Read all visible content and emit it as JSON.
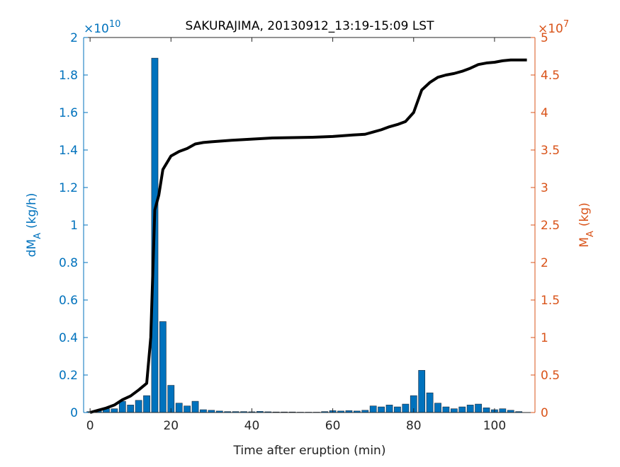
{
  "chart_data": {
    "type": "bar-line",
    "title": "SAKURAJIMA, 20130912_13:19-15:09 LST",
    "xlabel": "Time after eruption (min)",
    "ylabel": {
      "main": "dM",
      "sub": "A",
      "unit": "(kg/h)"
    },
    "y2label": {
      "main": "M",
      "sub": "A",
      "unit": "(kg)"
    },
    "y_exponent": {
      "base": "×10",
      "power": "10"
    },
    "y2_exponent": {
      "base": "×10",
      "power": "7"
    },
    "xlim": [
      -1.6,
      110
    ],
    "xticks": [
      0,
      20,
      40,
      60,
      80,
      100
    ],
    "ylim": [
      0,
      2
    ],
    "yticks": [
      0,
      0.2,
      0.4,
      0.6,
      0.8,
      1,
      1.2,
      1.4,
      1.6,
      1.8,
      2
    ],
    "y2lim": [
      0,
      5
    ],
    "y2ticks": [
      0,
      0.5,
      1,
      1.5,
      2,
      2.5,
      3,
      3.5,
      4,
      4.5,
      5
    ],
    "y_color": "#0072bd",
    "y2_color": "#d95319",
    "series": [
      {
        "type": "bar",
        "color": "#0072bd",
        "axis": "y",
        "x": [
          0,
          2,
          4,
          6,
          8,
          10,
          12,
          14,
          16,
          18,
          20,
          22,
          24,
          26,
          28,
          30,
          32,
          34,
          36,
          38,
          40,
          42,
          44,
          46,
          48,
          50,
          52,
          54,
          56,
          58,
          60,
          62,
          64,
          66,
          68,
          70,
          72,
          74,
          76,
          78,
          80,
          82,
          84,
          86,
          88,
          90,
          92,
          94,
          96,
          98,
          100,
          102,
          104,
          106
        ],
        "values": [
          0.005,
          0.01,
          0.02,
          0.02,
          0.06,
          0.04,
          0.065,
          0.09,
          1.89,
          0.485,
          0.145,
          0.05,
          0.035,
          0.06,
          0.015,
          0.012,
          0.008,
          0.005,
          0.005,
          0.005,
          0.004,
          0.006,
          0.004,
          0.003,
          0.003,
          0.003,
          0.002,
          0.002,
          0.002,
          0.005,
          0.01,
          0.008,
          0.01,
          0.008,
          0.012,
          0.035,
          0.03,
          0.04,
          0.03,
          0.045,
          0.09,
          0.225,
          0.105,
          0.05,
          0.03,
          0.02,
          0.03,
          0.04,
          0.045,
          0.025,
          0.015,
          0.02,
          0.012,
          0.005
        ]
      },
      {
        "type": "line",
        "color": "#000000",
        "axis": "y2",
        "x": [
          0,
          2,
          4,
          6,
          8,
          10,
          12,
          14,
          15,
          16,
          17,
          18,
          20,
          22,
          24,
          26,
          28,
          30,
          35,
          40,
          45,
          50,
          55,
          60,
          65,
          68,
          70,
          72,
          74,
          76,
          78,
          80,
          82,
          84,
          86,
          88,
          90,
          92,
          94,
          96,
          98,
          100,
          102,
          104,
          106,
          108
        ],
        "values": [
          0,
          0.03,
          0.06,
          0.1,
          0.17,
          0.22,
          0.3,
          0.39,
          1.0,
          2.7,
          2.9,
          3.24,
          3.42,
          3.48,
          3.52,
          3.58,
          3.6,
          3.61,
          3.63,
          3.645,
          3.66,
          3.665,
          3.67,
          3.68,
          3.7,
          3.71,
          3.74,
          3.77,
          3.81,
          3.84,
          3.88,
          4.0,
          4.3,
          4.4,
          4.47,
          4.5,
          4.52,
          4.55,
          4.59,
          4.64,
          4.66,
          4.67,
          4.69,
          4.7,
          4.7,
          4.7
        ]
      }
    ]
  }
}
